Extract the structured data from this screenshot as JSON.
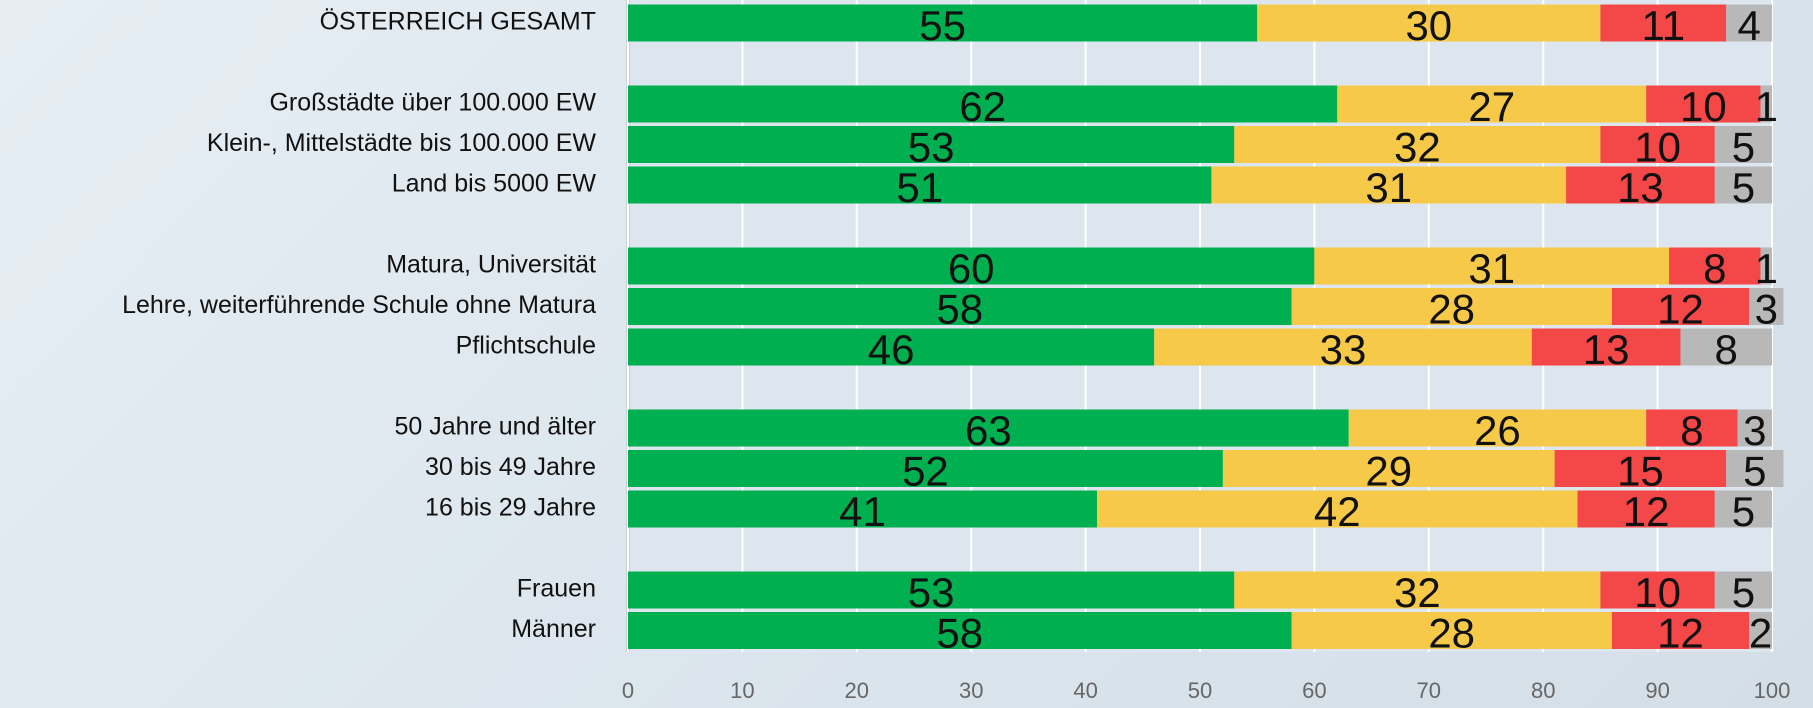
{
  "chart_data": {
    "type": "stacked_bar_horizontal",
    "categories": [
      "ÖSTERREICH GESAMT",
      null,
      "Großstädte über 100.000 EW",
      "Klein-, Mittelstädte bis 100.000 EW",
      "Land bis 5000 EW",
      null,
      "Matura, Universität",
      "Lehre, weiterführende Schule ohne Matura",
      "Pflichtschule",
      null,
      "50 Jahre und älter",
      "30 bis 49 Jahre",
      "16 bis 29 Jahre",
      null,
      "Frauen",
      "Männer"
    ],
    "series": [
      {
        "color": "#00b050",
        "values": [
          55,
          null,
          62,
          53,
          51,
          null,
          60,
          58,
          46,
          null,
          63,
          52,
          41,
          null,
          53,
          58
        ]
      },
      {
        "color": "#f7c948",
        "values": [
          30,
          null,
          27,
          32,
          31,
          null,
          31,
          28,
          33,
          null,
          26,
          29,
          42,
          null,
          32,
          28
        ]
      },
      {
        "color": "#f44747",
        "values": [
          11,
          null,
          10,
          10,
          13,
          null,
          8,
          12,
          13,
          null,
          8,
          15,
          12,
          null,
          10,
          12
        ]
      },
      {
        "color": "#b8b8b8",
        "values": [
          4,
          null,
          1,
          5,
          5,
          null,
          1,
          3,
          8,
          null,
          3,
          5,
          5,
          null,
          5,
          2
        ]
      }
    ],
    "xlim": [
      0,
      100
    ],
    "xticks": [
      0,
      10,
      20,
      30,
      40,
      50,
      60,
      70,
      80,
      90,
      100
    ],
    "grid": true
  }
}
